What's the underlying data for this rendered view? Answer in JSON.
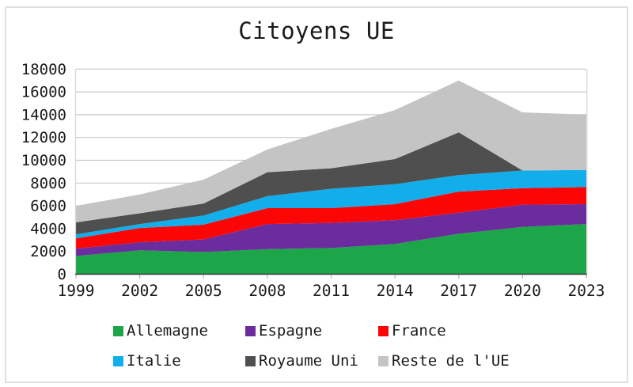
{
  "title": "Citoyens UE",
  "chart_data": {
    "type": "area",
    "stacked": true,
    "title": "Citoyens UE",
    "x": [
      "1999",
      "2002",
      "2005",
      "2008",
      "2011",
      "2014",
      "2017",
      "2020",
      "2023"
    ],
    "series": [
      {
        "name": "Allemagne",
        "color": "#1CA649",
        "values": [
          1600,
          2100,
          1950,
          2200,
          2300,
          2650,
          3550,
          4150,
          4400
        ]
      },
      {
        "name": "Espagne",
        "color": "#6B2D9E",
        "values": [
          650,
          700,
          1100,
          2200,
          2200,
          2100,
          1850,
          1950,
          1750
        ]
      },
      {
        "name": "France",
        "color": "#FB0505",
        "values": [
          900,
          1250,
          1300,
          1400,
          1300,
          1400,
          1850,
          1450,
          1500
        ]
      },
      {
        "name": "Italie",
        "color": "#12AEEC",
        "values": [
          350,
          350,
          800,
          1050,
          1700,
          1750,
          1450,
          1550,
          1500
        ]
      },
      {
        "name": "Royaume Uni",
        "color": "#4F4F4F",
        "values": [
          1050,
          950,
          1050,
          2100,
          1800,
          2200,
          3750,
          0,
          0
        ]
      },
      {
        "name": "Reste de l'UE",
        "color": "#C4C4C4",
        "values": [
          1450,
          1650,
          2100,
          2000,
          3450,
          4300,
          4550,
          5100,
          4850
        ]
      }
    ],
    "ylim": [
      0,
      18000
    ],
    "ytick_step": 2000,
    "grid": true,
    "legend_position": "bottom",
    "xlabel": "",
    "ylabel": ""
  },
  "colors": {
    "grid_line": "#c9c9c9",
    "axis_line": "#3a3a3a",
    "tick_mark": "#b9b9b9",
    "plot_border": "#d6d6d6",
    "frame_border": "#e0e0e0",
    "text": "#1a1a1a"
  }
}
